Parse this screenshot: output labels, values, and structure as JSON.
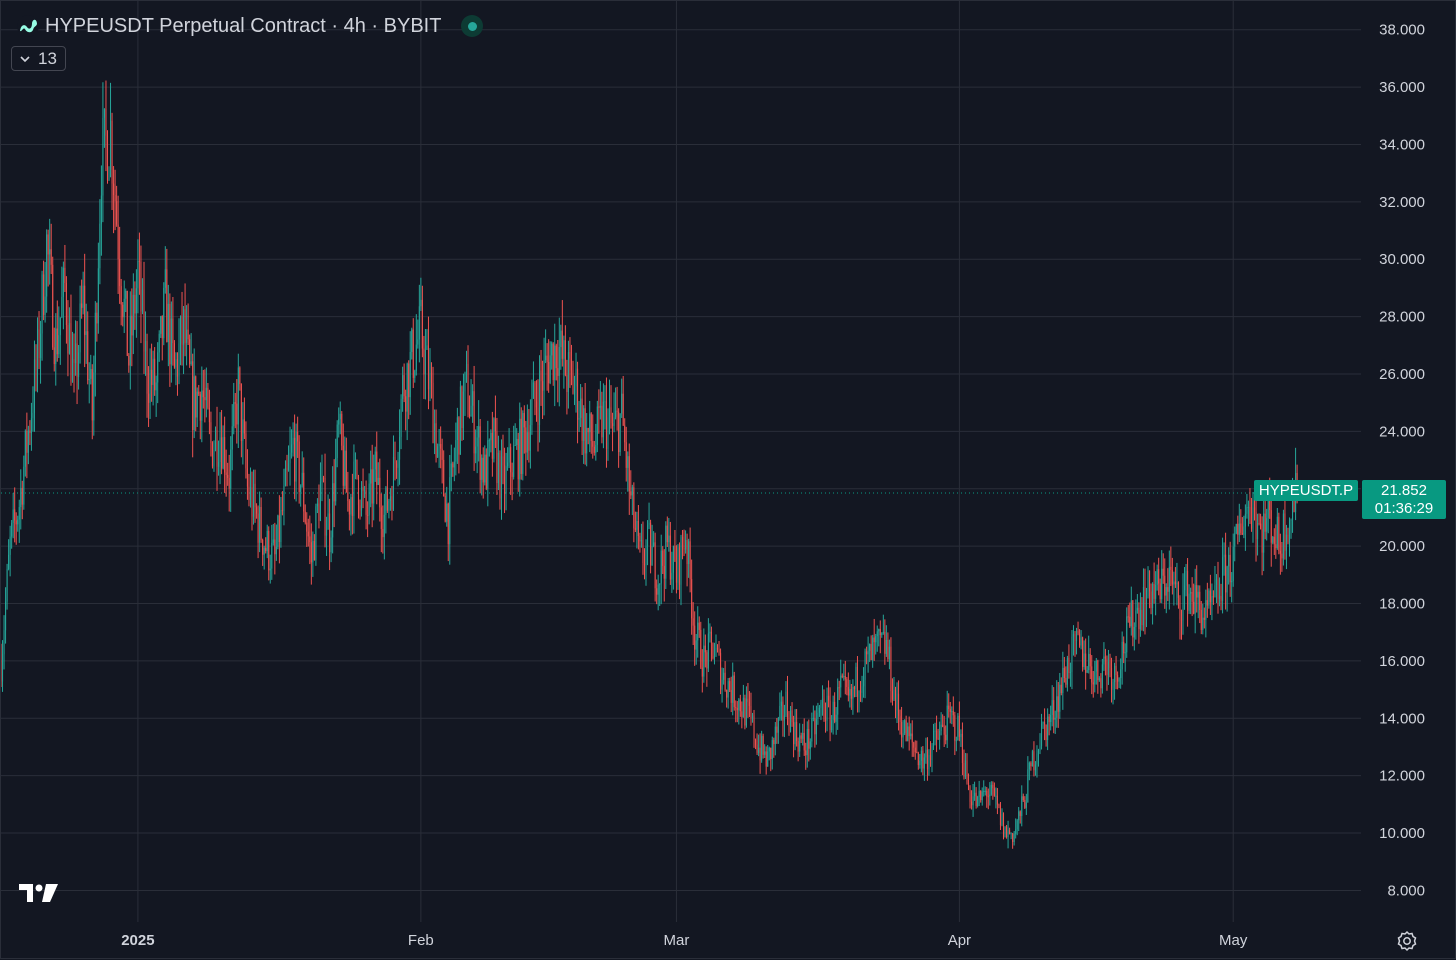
{
  "header": {
    "title": "HYPEUSDT Perpetual Contract · 4h · BYBIT",
    "indicator_count": "13"
  },
  "icons": {
    "symbol_logo": "hyperliquid-logo-icon",
    "status": "market-open-dot-icon",
    "collapse": "chevron-down-icon",
    "brand": "tradingview-logo-icon",
    "settings": "settings-gear-icon"
  },
  "colors": {
    "background": "#131722",
    "grid": "#2a2e39",
    "up": "#26a69a",
    "down": "#ef5350",
    "price_line": "#089981",
    "text": "#d1d4dc"
  },
  "price_label": {
    "symbol": "HYPEUSDT.P",
    "price": "21.852",
    "countdown": "01:36:29"
  },
  "chart_data": {
    "type": "candlestick",
    "timeframe": "4h",
    "x_range": [
      "2024-12-17",
      "2025-05-15"
    ],
    "x_ticks": [
      {
        "label": "2025",
        "date": "2025-01-01",
        "bold": true
      },
      {
        "label": "Feb",
        "date": "2025-02-01",
        "bold": false
      },
      {
        "label": "Mar",
        "date": "2025-03-01",
        "bold": false
      },
      {
        "label": "Apr",
        "date": "2025-04-01",
        "bold": false
      },
      {
        "label": "May",
        "date": "2025-05-01",
        "bold": false
      }
    ],
    "y_ticks": [
      "38.000",
      "36.000",
      "34.000",
      "32.000",
      "30.000",
      "28.000",
      "26.000",
      "24.000",
      "22.000",
      "20.000",
      "18.000",
      "16.000",
      "14.000",
      "12.000",
      "10.000",
      "8.000"
    ],
    "y_range": [
      6.9,
      39.0
    ],
    "last_price": 21.852,
    "first_date": "2024-12-17",
    "last_date": "2025-05-08",
    "price_path": [
      [
        "2024-12-17",
        16.0
      ],
      [
        "2024-12-18",
        20.0
      ],
      [
        "2024-12-19",
        21.5
      ],
      [
        "2024-12-20",
        24.0
      ],
      [
        "2024-12-21",
        26.5
      ],
      [
        "2024-12-22",
        30.5
      ],
      [
        "2024-12-23",
        27.0
      ],
      [
        "2024-12-24",
        29.0
      ],
      [
        "2024-12-25",
        25.5
      ],
      [
        "2024-12-26",
        28.5
      ],
      [
        "2024-12-27",
        24.5
      ],
      [
        "2024-12-28",
        33.5
      ],
      [
        "2024-12-29",
        34.5
      ],
      [
        "2024-12-30",
        30.0
      ],
      [
        "2024-12-31",
        26.5
      ],
      [
        "2025-01-01",
        29.5
      ],
      [
        "2025-01-02",
        26.0
      ],
      [
        "2025-01-03",
        25.5
      ],
      [
        "2025-01-04",
        28.5
      ],
      [
        "2025-01-05",
        26.0
      ],
      [
        "2025-01-06",
        27.5
      ],
      [
        "2025-01-07",
        25.0
      ],
      [
        "2025-01-08",
        25.5
      ],
      [
        "2025-01-09",
        23.5
      ],
      [
        "2025-01-10",
        24.0
      ],
      [
        "2025-01-11",
        22.5
      ],
      [
        "2025-01-12",
        25.5
      ],
      [
        "2025-01-13",
        22.0
      ],
      [
        "2025-01-14",
        21.0
      ],
      [
        "2025-01-15",
        20.0
      ],
      [
        "2025-01-16",
        19.5
      ],
      [
        "2025-01-17",
        21.5
      ],
      [
        "2025-01-18",
        23.5
      ],
      [
        "2025-01-19",
        22.0
      ],
      [
        "2025-01-20",
        19.5
      ],
      [
        "2025-01-21",
        22.0
      ],
      [
        "2025-01-22",
        20.5
      ],
      [
        "2025-01-23",
        24.0
      ],
      [
        "2025-01-24",
        21.5
      ],
      [
        "2025-01-25",
        22.5
      ],
      [
        "2025-01-26",
        21.0
      ],
      [
        "2025-01-27",
        22.5
      ],
      [
        "2025-01-28",
        21.0
      ],
      [
        "2025-01-29",
        22.5
      ],
      [
        "2025-01-30",
        25.5
      ],
      [
        "2025-01-31",
        26.5
      ],
      [
        "2025-02-01",
        27.5
      ],
      [
        "2025-02-02",
        25.5
      ],
      [
        "2025-02-03",
        23.0
      ],
      [
        "2025-02-04",
        21.0
      ],
      [
        "2025-02-05",
        24.0
      ],
      [
        "2025-02-06",
        25.5
      ],
      [
        "2025-02-07",
        24.0
      ],
      [
        "2025-02-08",
        22.5
      ],
      [
        "2025-02-09",
        23.5
      ],
      [
        "2025-02-10",
        22.0
      ],
      [
        "2025-02-11",
        23.0
      ],
      [
        "2025-02-12",
        23.5
      ],
      [
        "2025-02-13",
        24.5
      ],
      [
        "2025-02-14",
        25.5
      ],
      [
        "2025-02-15",
        26.5
      ],
      [
        "2025-02-16",
        27.0
      ],
      [
        "2025-02-17",
        26.0
      ],
      [
        "2025-02-18",
        25.5
      ],
      [
        "2025-02-19",
        24.0
      ],
      [
        "2025-02-20",
        23.5
      ],
      [
        "2025-02-21",
        24.5
      ],
      [
        "2025-02-22",
        24.0
      ],
      [
        "2025-02-23",
        24.5
      ],
      [
        "2025-02-24",
        21.5
      ],
      [
        "2025-02-25",
        19.5
      ],
      [
        "2025-02-26",
        20.0
      ],
      [
        "2025-02-27",
        19.0
      ],
      [
        "2025-02-28",
        20.0
      ],
      [
        "2025-03-01",
        19.0
      ],
      [
        "2025-03-02",
        20.5
      ],
      [
        "2025-03-03",
        17.0
      ],
      [
        "2025-03-04",
        16.0
      ],
      [
        "2025-03-05",
        16.5
      ],
      [
        "2025-03-06",
        15.5
      ],
      [
        "2025-03-07",
        15.0
      ],
      [
        "2025-03-08",
        14.5
      ],
      [
        "2025-03-09",
        14.0
      ],
      [
        "2025-03-10",
        13.0
      ],
      [
        "2025-03-11",
        12.5
      ],
      [
        "2025-03-12",
        13.5
      ],
      [
        "2025-03-13",
        14.5
      ],
      [
        "2025-03-14",
        13.5
      ],
      [
        "2025-03-15",
        13.0
      ],
      [
        "2025-03-16",
        13.5
      ],
      [
        "2025-03-17",
        14.5
      ],
      [
        "2025-03-18",
        14.0
      ],
      [
        "2025-03-19",
        15.0
      ],
      [
        "2025-03-20",
        14.5
      ],
      [
        "2025-03-21",
        15.5
      ],
      [
        "2025-03-22",
        16.0
      ],
      [
        "2025-03-23",
        16.5
      ],
      [
        "2025-03-24",
        16.5
      ],
      [
        "2025-03-25",
        14.5
      ],
      [
        "2025-03-26",
        13.5
      ],
      [
        "2025-03-27",
        13.0
      ],
      [
        "2025-03-28",
        12.5
      ],
      [
        "2025-03-29",
        13.0
      ],
      [
        "2025-03-30",
        13.5
      ],
      [
        "2025-03-31",
        14.0
      ],
      [
        "2025-04-01",
        13.5
      ],
      [
        "2025-04-02",
        11.5
      ],
      [
        "2025-04-03",
        11.0
      ],
      [
        "2025-04-04",
        11.5
      ],
      [
        "2025-04-05",
        11.0
      ],
      [
        "2025-04-06",
        10.0
      ],
      [
        "2025-04-07",
        10.0
      ],
      [
        "2025-04-08",
        11.0
      ],
      [
        "2025-04-09",
        12.5
      ],
      [
        "2025-04-10",
        13.5
      ],
      [
        "2025-04-11",
        14.0
      ],
      [
        "2025-04-12",
        15.0
      ],
      [
        "2025-04-13",
        16.0
      ],
      [
        "2025-04-14",
        16.5
      ],
      [
        "2025-04-15",
        16.0
      ],
      [
        "2025-04-16",
        15.5
      ],
      [
        "2025-04-17",
        16.0
      ],
      [
        "2025-04-18",
        15.5
      ],
      [
        "2025-04-19",
        16.5
      ],
      [
        "2025-04-20",
        17.5
      ],
      [
        "2025-04-21",
        18.0
      ],
      [
        "2025-04-22",
        18.5
      ],
      [
        "2025-04-23",
        18.5
      ],
      [
        "2025-04-24",
        19.0
      ],
      [
        "2025-04-25",
        18.0
      ],
      [
        "2025-04-26",
        18.5
      ],
      [
        "2025-04-27",
        18.0
      ],
      [
        "2025-04-28",
        17.5
      ],
      [
        "2025-04-29",
        18.0
      ],
      [
        "2025-04-30",
        19.0
      ],
      [
        "2025-05-01",
        19.5
      ],
      [
        "2025-05-02",
        21.0
      ],
      [
        "2025-05-03",
        21.5
      ],
      [
        "2025-05-04",
        20.5
      ],
      [
        "2025-05-05",
        21.0
      ],
      [
        "2025-05-06",
        20.0
      ],
      [
        "2025-05-07",
        21.0
      ],
      [
        "2025-05-08",
        21.85
      ]
    ]
  }
}
